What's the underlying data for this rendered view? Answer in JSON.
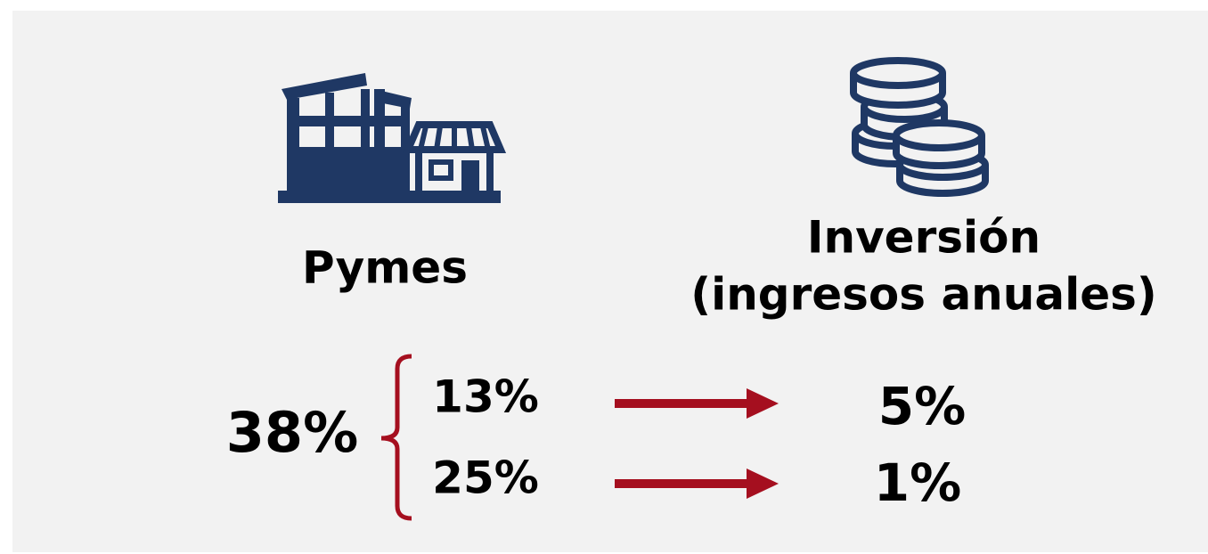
{
  "left": {
    "title": "Pymes"
  },
  "right": {
    "title_lines": [
      "Inversión",
      "(ingresos anuales)"
    ]
  },
  "total": "38%",
  "rows": [
    {
      "share": "13%",
      "investment": "5%"
    },
    {
      "share": "25%",
      "investment": "1%"
    }
  ]
}
